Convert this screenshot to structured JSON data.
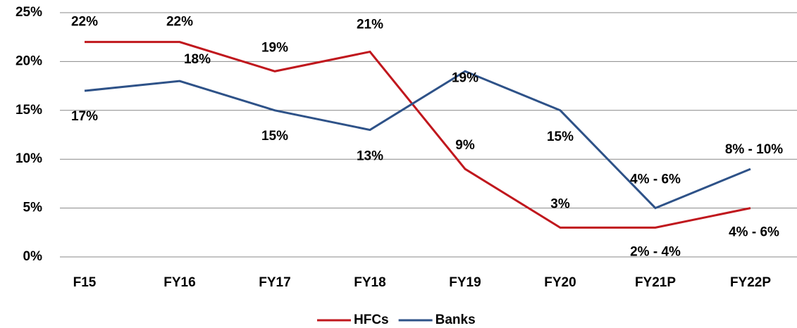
{
  "chart_data": {
    "type": "line",
    "categories": [
      "F15",
      "FY16",
      "FY17",
      "FY18",
      "FY19",
      "FY20",
      "FY21P",
      "FY22P"
    ],
    "series": [
      {
        "name": "HFCs",
        "color": "#c0171d",
        "values": [
          22,
          22,
          19,
          21,
          9,
          3,
          3,
          5
        ],
        "value_labels": [
          "22%",
          "22%",
          "19%",
          "21%",
          "9%",
          "3%",
          "2% - 4%",
          "4% - 6%"
        ]
      },
      {
        "name": "Banks",
        "color": "#2e5288",
        "values": [
          17,
          18,
          15,
          13,
          19,
          15,
          5,
          9
        ],
        "value_labels": [
          "17%",
          "18%",
          "15%",
          "13%",
          "19%",
          "15%",
          "4% - 6%",
          "8% - 10%"
        ]
      }
    ],
    "ylim": [
      0,
      25
    ],
    "yticks": [
      {
        "value": 0,
        "label": "0%"
      },
      {
        "value": 5,
        "label": "5%"
      },
      {
        "value": 10,
        "label": "10%"
      },
      {
        "value": 15,
        "label": "15%"
      },
      {
        "value": 20,
        "label": "20%"
      },
      {
        "value": 25,
        "label": "25%"
      }
    ],
    "grid": true,
    "legend": "bottom"
  }
}
